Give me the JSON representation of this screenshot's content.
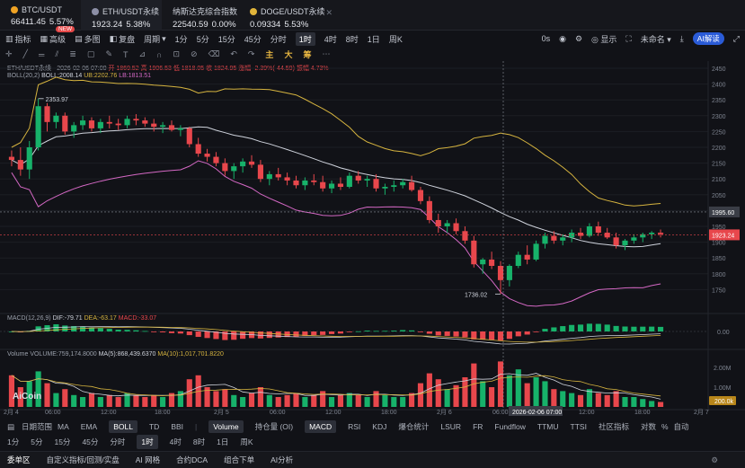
{
  "tickers": [
    {
      "name": "BTC/USDT",
      "price": "66411.45",
      "change": "5.57%",
      "color": "#f0a324"
    },
    {
      "name": "ETH/USDT永续",
      "price": "1923.24",
      "change": "5.38%",
      "color": "#8c8fa6"
    },
    {
      "name": "纳斯达克综合指数",
      "price": "22540.59",
      "change": "0.00%",
      "color": ""
    },
    {
      "name": "DOGE/USDT永续",
      "price": "0.09334",
      "change": "5.53%",
      "color": "#e0b43a"
    }
  ],
  "toolbar": {
    "items": [
      "指标",
      "高级",
      "多图",
      "复盘",
      "周期",
      "1分",
      "5分",
      "15分",
      "45分",
      "分时",
      "1时",
      "4时",
      "8时",
      "1日",
      "周K"
    ],
    "selected": "1时",
    "new_badge": "NEW",
    "right": [
      "0s",
      "显示",
      "未命名"
    ],
    "ai_label": "AI解读"
  },
  "drawbar": {
    "items": [
      "主",
      "大",
      "筹"
    ]
  },
  "chart_info": {
    "symbol_line": "ETH/USDT永续 · 2026-02-06 07:00",
    "open": "开 1869.52",
    "high": "高 1906.53",
    "low": "低 1818.05",
    "close": "收 1824.95",
    "change": "涨幅 -2.39%(-44.59)",
    "amplitude": "振幅 4.73%",
    "boll_label": "BOLL(20,2)",
    "boll": "BOLL:2008.14",
    "ub": "UB:2202.76",
    "lb": "LB:1813.51",
    "macd_label": "MACD(12,26,9)",
    "dif": "DIF:-79.71",
    "dea": "DEA:-63.17",
    "macd": "MACD:-33.07",
    "vol_label": "Volume",
    "volume": "VOLUME:759,174.8000",
    "ma5": "MA(5):868,439.6370",
    "ma10": "MA(10):1,017,701.8220"
  },
  "chart_data": {
    "type": "candlestick",
    "price_axis": {
      "min": 1700,
      "max": 2450,
      "ticks": [
        2450,
        2400,
        2350,
        2300,
        2250,
        2200,
        2150,
        2100,
        2050,
        2000,
        1950,
        1900,
        1850,
        1800,
        1750
      ]
    },
    "annotations": {
      "high_label": "2353.97",
      "low_label": "1736.02",
      "crosshair_price": "1995.60",
      "last_price": "1923.24"
    },
    "macd_axis": {
      "ticks": [
        "0.00"
      ]
    },
    "volume_axis": {
      "ticks": [
        "2.00M",
        "1.00M"
      ],
      "marker": "200.0k"
    },
    "x_labels": [
      "2月 4",
      "06:00",
      "12:00",
      "18:00",
      "2月 5",
      "06:00",
      "12:00",
      "18:00",
      "2月 6",
      "06:00",
      "2026-02-06 07:00",
      "12:00",
      "18:00",
      "2月 7"
    ],
    "watermark": "AiCoin",
    "candles": [
      [
        2170,
        2190,
        2140,
        2160
      ],
      [
        2160,
        2200,
        2110,
        2130
      ],
      [
        2130,
        2220,
        2100,
        2200
      ],
      [
        2200,
        2354,
        2190,
        2330
      ],
      [
        2330,
        2340,
        2250,
        2280
      ],
      [
        2280,
        2310,
        2260,
        2300
      ],
      [
        2300,
        2310,
        2240,
        2250
      ],
      [
        2250,
        2280,
        2230,
        2270
      ],
      [
        2270,
        2300,
        2255,
        2285
      ],
      [
        2285,
        2295,
        2250,
        2260
      ],
      [
        2260,
        2290,
        2245,
        2280
      ],
      [
        2280,
        2300,
        2260,
        2275
      ],
      [
        2275,
        2290,
        2255,
        2270
      ],
      [
        2270,
        2300,
        2260,
        2290
      ],
      [
        2290,
        2305,
        2270,
        2285
      ],
      [
        2285,
        2295,
        2265,
        2275
      ],
      [
        2275,
        2290,
        2250,
        2265
      ],
      [
        2265,
        2280,
        2245,
        2270
      ],
      [
        2270,
        2285,
        2250,
        2255
      ],
      [
        2255,
        2270,
        2235,
        2260
      ],
      [
        2260,
        2265,
        2200,
        2210
      ],
      [
        2210,
        2230,
        2170,
        2180
      ],
      [
        2180,
        2195,
        2155,
        2170
      ],
      [
        2170,
        2185,
        2140,
        2150
      ],
      [
        2150,
        2165,
        2110,
        2125
      ],
      [
        2125,
        2150,
        2100,
        2140
      ],
      [
        2140,
        2165,
        2120,
        2155
      ],
      [
        2155,
        2175,
        2135,
        2145
      ],
      [
        2145,
        2160,
        2090,
        2100
      ],
      [
        2100,
        2125,
        2080,
        2115
      ],
      [
        2115,
        2135,
        2095,
        2105
      ],
      [
        2105,
        2120,
        2080,
        2095
      ],
      [
        2095,
        2110,
        2070,
        2080
      ],
      [
        2080,
        2105,
        2065,
        2095
      ],
      [
        2095,
        2115,
        2080,
        2090
      ],
      [
        2090,
        2110,
        2060,
        2070
      ],
      [
        2070,
        2095,
        2055,
        2085
      ],
      [
        2085,
        2105,
        2065,
        2075
      ],
      [
        2075,
        2120,
        2070,
        2110
      ],
      [
        2110,
        2125,
        2085,
        2095
      ],
      [
        2095,
        2110,
        2075,
        2100
      ],
      [
        2100,
        2115,
        2060,
        2070
      ],
      [
        2070,
        2085,
        2050,
        2075
      ],
      [
        2075,
        2095,
        2060,
        2080
      ],
      [
        2080,
        2100,
        2070,
        2090
      ],
      [
        2090,
        2110,
        2060,
        2065
      ],
      [
        2065,
        2075,
        2020,
        2030
      ],
      [
        2030,
        2045,
        1960,
        1970
      ],
      [
        1970,
        1990,
        1930,
        1950
      ],
      [
        1950,
        1970,
        1930,
        1960
      ],
      [
        1960,
        1975,
        1925,
        1935
      ],
      [
        1935,
        1950,
        1895,
        1905
      ],
      [
        1905,
        1920,
        1820,
        1830
      ],
      [
        1830,
        1850,
        1800,
        1845
      ],
      [
        1845,
        1870,
        1815,
        1825
      ],
      [
        1825,
        1840,
        1736,
        1780
      ],
      [
        1780,
        1830,
        1760,
        1825
      ],
      [
        1825,
        1870,
        1818,
        1860
      ],
      [
        1860,
        1890,
        1830,
        1845
      ],
      [
        1845,
        1905,
        1840,
        1895
      ],
      [
        1895,
        1930,
        1880,
        1920
      ],
      [
        1920,
        1935,
        1895,
        1905
      ],
      [
        1905,
        1925,
        1890,
        1915
      ],
      [
        1915,
        1940,
        1900,
        1930
      ],
      [
        1930,
        1945,
        1910,
        1920
      ],
      [
        1920,
        1960,
        1915,
        1950
      ],
      [
        1950,
        1965,
        1920,
        1930
      ],
      [
        1930,
        1945,
        1910,
        1915
      ],
      [
        1915,
        1930,
        1880,
        1890
      ],
      [
        1890,
        1910,
        1875,
        1905
      ],
      [
        1905,
        1925,
        1895,
        1915
      ],
      [
        1915,
        1930,
        1900,
        1925
      ],
      [
        1925,
        1935,
        1910,
        1930
      ],
      [
        1930,
        1940,
        1915,
        1925
      ]
    ],
    "volumes": [
      1.6,
      1.0,
      1.3,
      1.8,
      1.2,
      0.7,
      0.9,
      0.6,
      0.5,
      0.7,
      0.5,
      0.6,
      0.5,
      0.7,
      0.6,
      0.5,
      0.6,
      0.5,
      0.7,
      0.8,
      1.4,
      1.6,
      1.0,
      0.8,
      0.9,
      0.6,
      0.5,
      0.7,
      1.0,
      0.6,
      0.5,
      0.6,
      0.7,
      0.5,
      0.6,
      0.8,
      0.5,
      0.6,
      0.7,
      0.6,
      0.5,
      0.8,
      0.6,
      0.5,
      0.5,
      0.7,
      1.2,
      1.7,
      1.4,
      0.9,
      1.1,
      1.5,
      2.2,
      1.3,
      1.0,
      2.3,
      1.6,
      1.9,
      1.2,
      1.5,
      1.3,
      0.9,
      0.8,
      0.7,
      0.6,
      0.9,
      0.7,
      0.6,
      0.8,
      0.5,
      0.5,
      0.4,
      0.3,
      0.25
    ]
  },
  "indicator_bar": {
    "main_label": "日期范围",
    "main": [
      "MA",
      "EMA",
      "BOLL",
      "TD",
      "BBI"
    ],
    "main_selected": "BOLL",
    "sub": [
      "Volume",
      "持仓量 (OI)",
      "MACD",
      "RSI",
      "KDJ",
      "爆仓统计",
      "LSUR",
      "FR",
      "Fundflow",
      "TTMU",
      "TTSI",
      "社区指标"
    ],
    "sub_selected": [
      "Volume",
      "MACD"
    ],
    "right": [
      "对数",
      "%",
      "自动"
    ]
  },
  "interval_bar": {
    "items": [
      "1分",
      "5分",
      "15分",
      "45分",
      "分时",
      "1时",
      "4时",
      "8时",
      "1日",
      "周K"
    ],
    "selected": "1时"
  },
  "bottom_bar": {
    "items": [
      "委单区",
      "自定义指标/回测/实盘",
      "AI 网格",
      "合约DCA",
      "组合下单",
      "AI分析"
    ]
  },
  "colors": {
    "up": "#17b26a",
    "down": "#e8474c",
    "boll_mid": "#cfd3dc",
    "boll_upper": "#d6b43f",
    "boll_lower": "#d468c4",
    "bg": "#111217"
  }
}
